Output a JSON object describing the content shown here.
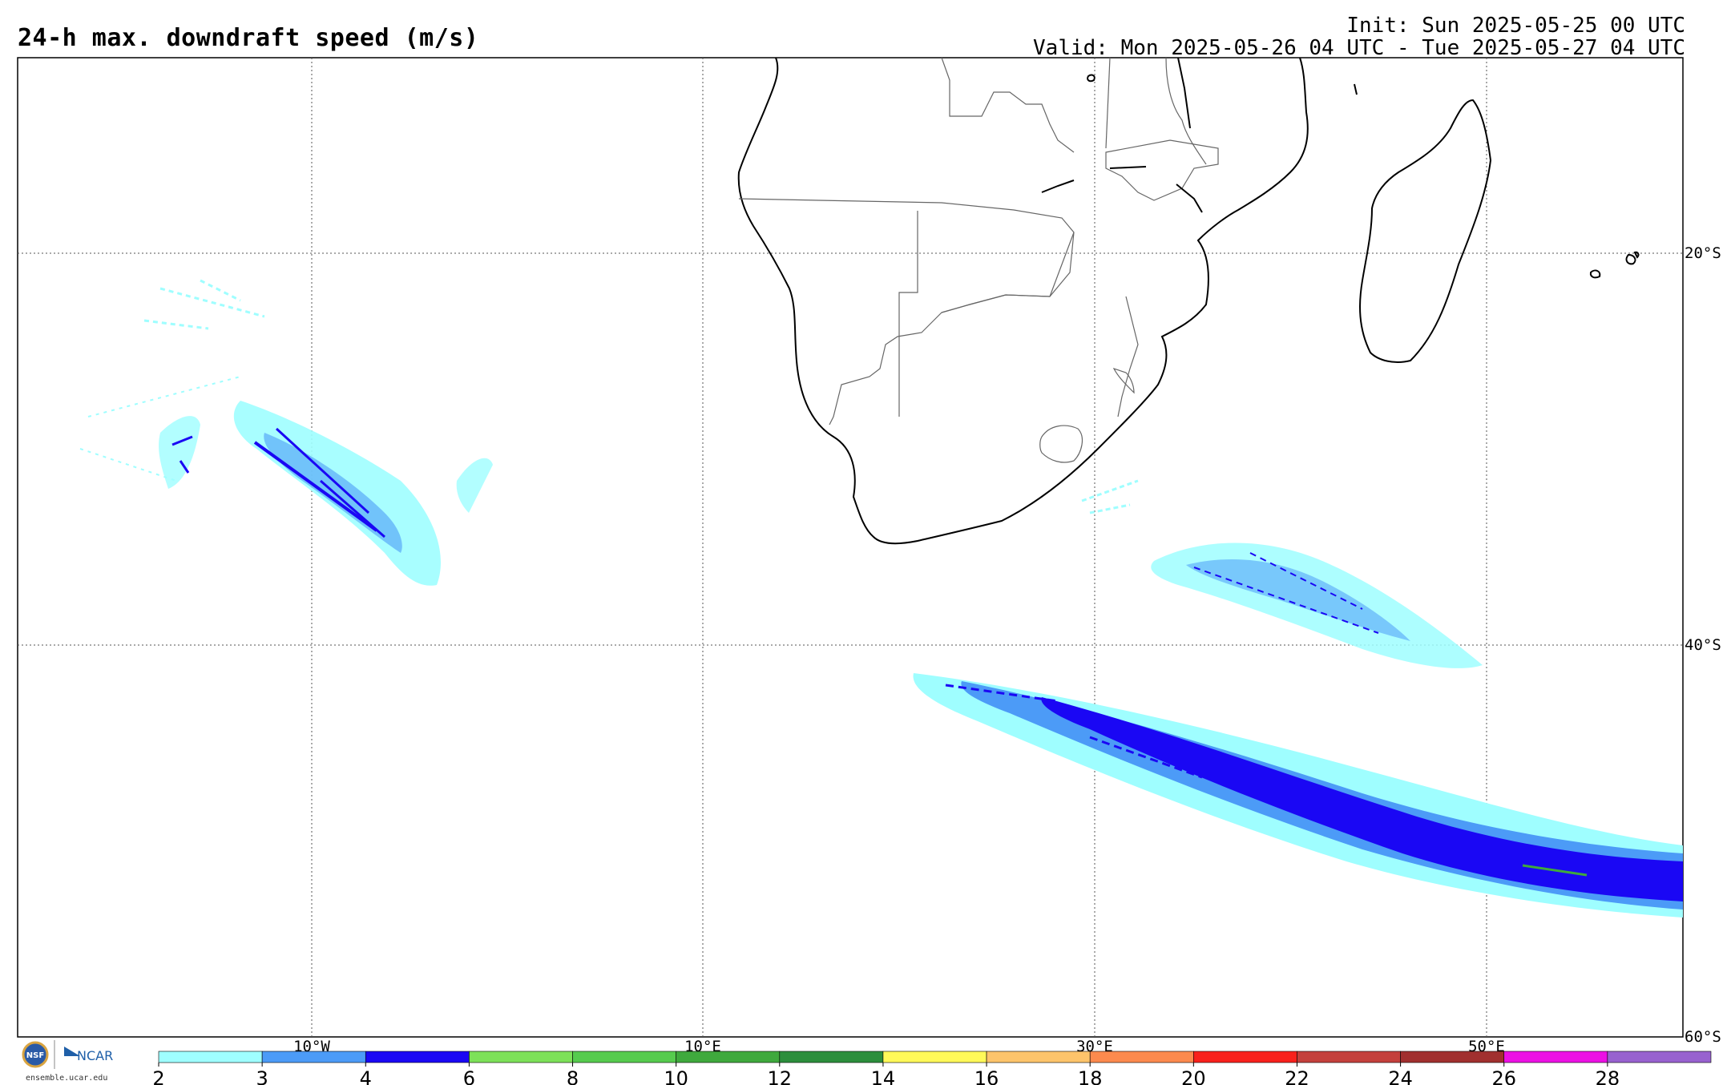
{
  "header": {
    "title": "24-h max. downdraft speed (m/s)",
    "init": "Init: Sun 2025-05-25 00 UTC",
    "valid": "Valid: Mon 2025-05-26 04 UTC - Tue 2025-05-27 04 UTC"
  },
  "map": {
    "lat_labels": [
      "20°S",
      "40°S",
      "60°S"
    ],
    "lon_labels": [
      "10°W",
      "10°E",
      "30°E",
      "50°E"
    ],
    "colors": {
      "c2": "#9ffeff",
      "c3": "#4c9bf7",
      "c4": "#1a07f4",
      "c10": "#3fa93d"
    }
  },
  "colorbar": {
    "ticks": [
      "2",
      "3",
      "4",
      "6",
      "8",
      "10",
      "12",
      "14",
      "16",
      "18",
      "20",
      "22",
      "24",
      "26",
      "28"
    ],
    "colors": [
      "#9ffeff",
      "#4c9bf7",
      "#1a07f4",
      "#7de159",
      "#56cb4e",
      "#3fa93d",
      "#2c8e3c",
      "#fff959",
      "#fdc46b",
      "#fc8a4e",
      "#f8211c",
      "#c4403c",
      "#a1302f",
      "#ec10e4",
      "#9862cf"
    ]
  },
  "logo": {
    "org1": "NSF",
    "org2": "NCAR",
    "url": "ensemble.ucar.edu"
  }
}
